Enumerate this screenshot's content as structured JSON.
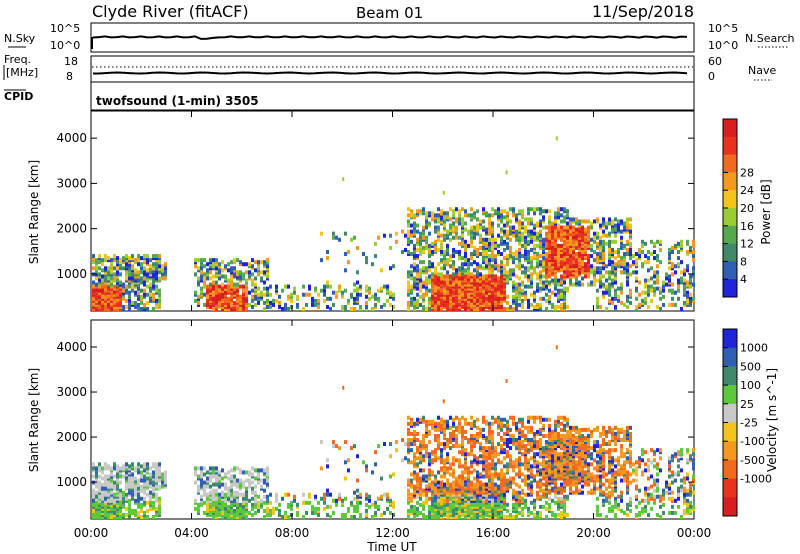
{
  "header": {
    "station": "Clyde River (fitACF)",
    "beam": "Beam 01",
    "date": "11/Sep/2018"
  },
  "top_panels": {
    "nsky_label": "N.Sky",
    "nsearch_label": "N.Search",
    "left_ticks_nsky": [
      "10^5",
      "10^0"
    ],
    "right_ticks_nsearch": [
      "10^5",
      "10^0"
    ],
    "freq_label_1": "Freq.",
    "freq_label_2": "[MHz]",
    "nave_label": "Nave",
    "left_ticks_freq": [
      "18",
      "8"
    ],
    "right_ticks_nave": [
      "60",
      "0"
    ],
    "cpid_label": "CPID",
    "cpid_text": "twofsound (1-min) 3505"
  },
  "chart_data": [
    {
      "type": "heatmap",
      "panel": "power",
      "ylabel": "Slant Range [km]",
      "xlabel": "",
      "ylim": [
        180,
        4600
      ],
      "yticks": [
        1000,
        2000,
        3000,
        4000
      ],
      "colorbar_label": "Power [dB]",
      "colorbar_ticks": [
        "4",
        "8",
        "12",
        "16",
        "20",
        "24",
        "28"
      ],
      "colorbar_range": [
        0,
        30
      ],
      "colors": [
        "#1e24d8",
        "#2f5fb0",
        "#3f8a6a",
        "#55a84e",
        "#9acd32",
        "#f0c419",
        "#f39a1e",
        "#f26a1e",
        "#e8321e",
        "#d81e1e"
      ]
    },
    {
      "type": "heatmap",
      "panel": "velocity",
      "ylabel": "Slant Range [km]",
      "xlabel": "Time UT",
      "ylim": [
        180,
        4600
      ],
      "yticks": [
        1000,
        2000,
        3000,
        4000
      ],
      "xticks": [
        "00:00",
        "04:00",
        "08:00",
        "12:00",
        "16:00",
        "20:00",
        "00:00"
      ],
      "colorbar_label": "Velocity [m s^-1]",
      "colorbar_ticks": [
        "1000",
        "500",
        "100",
        "25",
        "-25",
        "-100",
        "-500",
        "-1000"
      ],
      "colors": [
        "#1e24d8",
        "#2f5fb0",
        "#3f8a6a",
        "#5cc83c",
        "#c8c8c8",
        "#f0c419",
        "#f39a1e",
        "#f26a1e",
        "#e8321e",
        "#d81e1e"
      ]
    }
  ]
}
